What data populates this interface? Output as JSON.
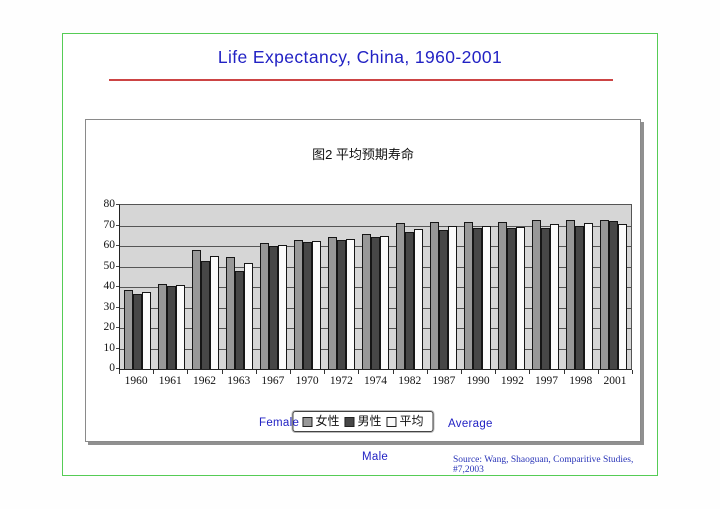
{
  "slide": {
    "title": "Life Expectancy, China, 1960-2001",
    "annotations": {
      "female": "Female",
      "male": "Male",
      "average": "Average"
    },
    "source": "Source: Wang, Shaoguan, Comparitive Studies, #7,2003"
  },
  "chart_data": {
    "type": "bar",
    "title": "图2  平均预期寿命",
    "title_translation": "Figure 2: Average life expectancy",
    "categories": [
      "1960",
      "1961",
      "1962",
      "1963",
      "1967",
      "1970",
      "1972",
      "1974",
      "1982",
      "1987",
      "1990",
      "1992",
      "1997",
      "1998",
      "2001"
    ],
    "series": [
      {
        "key": "female",
        "name": "女性 (Female)",
        "label": "女性",
        "color": "#989898",
        "values": [
          38,
          41,
          57.5,
          54,
          61,
          62.5,
          64,
          65.5,
          70.5,
          71,
          71,
          71,
          72,
          72,
          72
        ]
      },
      {
        "key": "male",
        "name": "男性 (Male)",
        "label": "男性",
        "color": "#474747",
        "values": [
          36,
          40,
          52,
          47.5,
          59.5,
          61.5,
          62.5,
          64,
          66.5,
          67.5,
          68.5,
          68.5,
          68.5,
          69.5,
          71.5
        ]
      },
      {
        "key": "average",
        "name": "平均 (Average)",
        "label": "平均",
        "color": "#fbfbfb",
        "values": [
          37,
          40.5,
          54.5,
          51,
          60,
          62,
          63,
          64.5,
          68,
          69.5,
          69.5,
          69,
          70,
          70.5,
          70
        ]
      }
    ],
    "xlabel": "",
    "ylabel": "",
    "ylim": [
      0,
      80
    ],
    "ytick_interval": 10,
    "grid": true,
    "plot_background": "#d6d6d6",
    "legend_position": "bottom"
  },
  "colors": {
    "title_blue": "#2222c4",
    "underline_red": "#cc4444",
    "slide_border_green": "#55cc55",
    "source_blue": "#2a35b8"
  }
}
